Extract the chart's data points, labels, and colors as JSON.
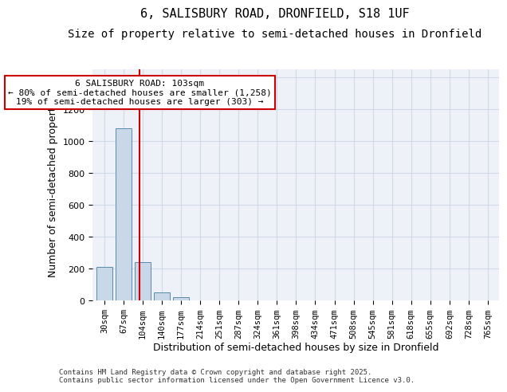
{
  "title_line1": "6, SALISBURY ROAD, DRONFIELD, S18 1UF",
  "title_line2": "Size of property relative to semi-detached houses in Dronfield",
  "xlabel": "Distribution of semi-detached houses by size in Dronfield",
  "ylabel": "Number of semi-detached properties",
  "categories": [
    "30sqm",
    "67sqm",
    "104sqm",
    "140sqm",
    "177sqm",
    "214sqm",
    "251sqm",
    "287sqm",
    "324sqm",
    "361sqm",
    "398sqm",
    "434sqm",
    "471sqm",
    "508sqm",
    "545sqm",
    "581sqm",
    "618sqm",
    "655sqm",
    "692sqm",
    "728sqm",
    "765sqm"
  ],
  "values": [
    210,
    1080,
    240,
    50,
    20,
    0,
    0,
    0,
    0,
    0,
    0,
    0,
    0,
    0,
    0,
    0,
    0,
    0,
    0,
    0,
    0
  ],
  "bar_color": "#c8d8e8",
  "bar_edge_color": "#5a8ab0",
  "red_line_x": 1.85,
  "annotation_text": "6 SALISBURY ROAD: 103sqm\n← 80% of semi-detached houses are smaller (1,258)\n19% of semi-detached houses are larger (303) →",
  "annotation_box_color": "#ffffff",
  "annotation_box_edge_color": "#cc0000",
  "annotation_text_color": "#000000",
  "red_line_color": "#cc0000",
  "ylim": [
    0,
    1450
  ],
  "yticks": [
    0,
    200,
    400,
    600,
    800,
    1000,
    1200,
    1400
  ],
  "grid_color": "#d0d8e8",
  "bg_color": "#eef2f8",
  "footer_text": "Contains HM Land Registry data © Crown copyright and database right 2025.\nContains public sector information licensed under the Open Government Licence v3.0.",
  "title_fontsize": 11,
  "subtitle_fontsize": 10,
  "axis_label_fontsize": 9,
  "tick_fontsize": 7.5,
  "annotation_fontsize": 8
}
